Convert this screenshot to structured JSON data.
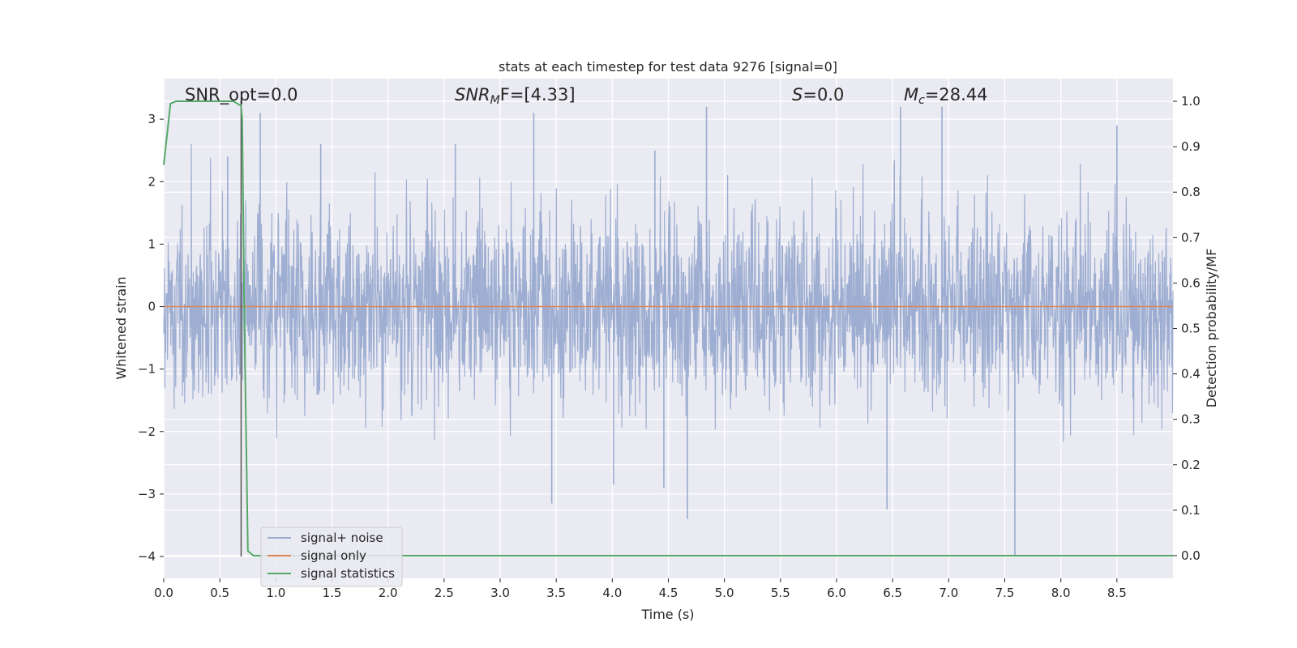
{
  "chart_data": {
    "type": "line",
    "title": "stats at each timestep for test data 9276 [signal=0]",
    "xlabel": "Time (s)",
    "ylabel": "Whitened strain",
    "ylabel_right": "Detection probability/MF",
    "xlim": [
      0.0,
      9.0
    ],
    "ylim": [
      -4.35,
      3.65
    ],
    "ylim_right": [
      -0.05,
      1.05
    ],
    "x_ticks": [
      "0.0",
      "0.5",
      "1.0",
      "1.5",
      "2.0",
      "2.5",
      "3.0",
      "3.5",
      "4.0",
      "4.5",
      "5.0",
      "5.5",
      "6.0",
      "6.5",
      "7.0",
      "7.5",
      "8.0",
      "8.5"
    ],
    "y_ticks": [
      "3",
      "2",
      "1",
      "0",
      "−1",
      "−2",
      "−3",
      "−4"
    ],
    "y_ticks_right": [
      "1.0",
      "0.9",
      "0.8",
      "0.7",
      "0.6",
      "0.5",
      "0.4",
      "0.3",
      "0.2",
      "0.1",
      "0.0"
    ],
    "grid": true,
    "legend_position": "lower-left",
    "annotations": {
      "snr_opt": "SNR_opt=0.0",
      "snr_mf_main": "SNR",
      "snr_mf_sub": "M",
      "snr_mf_rest": "F=[4.33]",
      "s_main": "S",
      "s_rest": "=0.0",
      "mc_main": "M",
      "mc_sub": "c",
      "mc_rest": "=28.44"
    },
    "series": [
      {
        "name": "signal+ noise",
        "color": "#9aabd0",
        "description_values": "whitened noise, approx. within [-2, 2] with spikes to about 3.2 and -3.4",
        "noise_std": 0.75,
        "spikes": [
          [
            0.57,
            2.4
          ],
          [
            0.86,
            3.1
          ],
          [
            1.4,
            2.6
          ],
          [
            2.6,
            2.6
          ],
          [
            3.3,
            3.1
          ],
          [
            3.46,
            -3.15
          ],
          [
            4.01,
            -2.85
          ],
          [
            4.38,
            2.5
          ],
          [
            4.46,
            -2.9
          ],
          [
            4.67,
            -3.4
          ],
          [
            4.84,
            3.2
          ],
          [
            6.45,
            -3.25
          ],
          [
            6.57,
            3.2
          ],
          [
            6.94,
            3.2
          ],
          [
            7.59,
            -4.0
          ],
          [
            8.5,
            2.9
          ]
        ]
      },
      {
        "name": "signal only",
        "color": "#dd8452",
        "values_constant": 0.0
      },
      {
        "name": "signal statistics",
        "color": "#55a868",
        "axis": "right",
        "x": [
          0.0,
          0.06,
          0.11,
          0.2,
          0.62,
          0.69,
          0.7,
          0.72,
          0.75,
          0.8,
          0.85,
          9.0
        ],
        "y": [
          0.86,
          0.995,
          1.0,
          1.0,
          1.0,
          0.99,
          0.96,
          0.5,
          0.01,
          0.0,
          0.0,
          0.0
        ]
      }
    ],
    "vertical_marker": {
      "x": 0.69,
      "color": "#555555",
      "y_from": -4.0,
      "y_to": 3.3
    }
  }
}
